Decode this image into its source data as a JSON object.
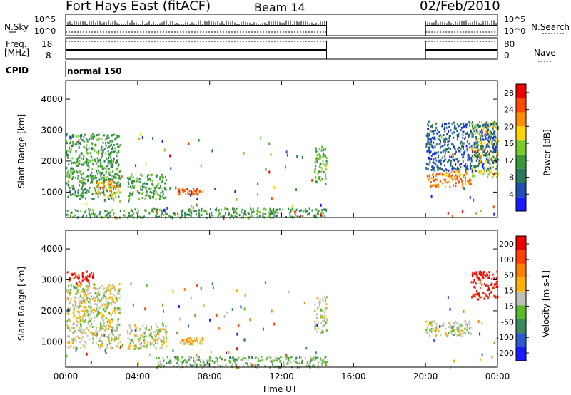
{
  "header": {
    "station": "Fort Hays East (fitACF)",
    "beam": "Beam 14",
    "date": "02/Feb/2010"
  },
  "top_panels": {
    "nsky_label": "N.Sky",
    "nsky_ticks": [
      "10^5",
      "10^0"
    ],
    "nsearch_label": "N.Search",
    "nsearch_ticks": [
      "10^5",
      "10^0"
    ],
    "freq_label_1": "Freq.",
    "freq_label_2": "[MHz]",
    "freq_ticks": [
      "18",
      "8"
    ],
    "nave_label": "Nave",
    "nave_ticks": [
      "80",
      "0"
    ],
    "cpid_label": "CPID",
    "cpid_value": "normal 150"
  },
  "colors": {
    "power": [
      "#1a1aff",
      "#1f4fb4",
      "#2a7a5a",
      "#3a9a3a",
      "#7acc2a",
      "#ffd400",
      "#ff9000",
      "#ff4a00",
      "#ee0000"
    ],
    "velocity": [
      "#1a1aff",
      "#2a5acc",
      "#3a8a5a",
      "#5aba2a",
      "#c0c0b4",
      "#ffb000",
      "#ff8000",
      "#ff4000",
      "#ee0000"
    ]
  },
  "chart_data": [
    {
      "type": "heatmap",
      "title": "Power",
      "xlabel": "Time UT",
      "ylabel": "Slant Range [km]",
      "x_ticks": [
        "00:00",
        "04:00",
        "08:00",
        "12:00",
        "16:00",
        "20:00",
        "00:00"
      ],
      "xlim_hours": [
        0,
        24
      ],
      "y_ticks": [
        1000,
        2000,
        3000,
        4000
      ],
      "ylim": [
        180,
        4600
      ],
      "colorbar": {
        "label": "Power [dB]",
        "ticks": [
          4,
          8,
          12,
          16,
          20,
          24,
          28
        ],
        "range": [
          0,
          30
        ]
      },
      "data_gap_hours": [
        14.5,
        20.0
      ],
      "echo_regions": [
        {
          "t0": 0.0,
          "t1": 3.0,
          "r0": 800,
          "r1": 2900,
          "value": 11
        },
        {
          "t0": 1.6,
          "t1": 2.9,
          "r0": 900,
          "r1": 1400,
          "value": 21
        },
        {
          "t0": 3.4,
          "t1": 5.6,
          "r0": 800,
          "r1": 1600,
          "value": 12
        },
        {
          "t0": 6.2,
          "t1": 7.6,
          "r0": 950,
          "r1": 1150,
          "value": 24
        },
        {
          "t0": 0.0,
          "t1": 14.5,
          "r0": 200,
          "r1": 500,
          "value": 11
        },
        {
          "t0": 13.8,
          "t1": 14.5,
          "r0": 1300,
          "r1": 2500,
          "value": 13
        },
        {
          "t0": 20.0,
          "t1": 22.5,
          "r0": 1200,
          "r1": 1700,
          "value": 23
        },
        {
          "t0": 22.5,
          "t1": 24.0,
          "r0": 1500,
          "r1": 3300,
          "value": 17
        },
        {
          "t0": 20.0,
          "t1": 24.0,
          "r0": 1700,
          "r1": 3300,
          "value": 6
        }
      ]
    },
    {
      "type": "heatmap",
      "title": "Velocity",
      "xlabel": "Time UT",
      "ylabel": "Slant Range [km]",
      "x_ticks": [
        "00:00",
        "04:00",
        "08:00",
        "12:00",
        "16:00",
        "20:00",
        "00:00"
      ],
      "xlim_hours": [
        0,
        24
      ],
      "y_ticks": [
        1000,
        2000,
        3000,
        4000
      ],
      "ylim": [
        180,
        4600
      ],
      "colorbar": {
        "label": "Velocity [m s-1]",
        "ticks": [
          200,
          100,
          50,
          15,
          -15,
          -50,
          -100,
          -200
        ],
        "range": [
          -250,
          250
        ]
      },
      "data_gap_hours": [
        14.5,
        20.0
      ],
      "echo_regions": [
        {
          "t0": 0.0,
          "t1": 3.0,
          "r0": 800,
          "r1": 2900,
          "value": 0
        },
        {
          "t0": 3.4,
          "t1": 5.6,
          "r0": 800,
          "r1": 1600,
          "value": 0
        },
        {
          "t0": 6.2,
          "t1": 7.6,
          "r0": 950,
          "r1": 1150,
          "value": 60
        },
        {
          "t0": 5.0,
          "t1": 14.5,
          "r0": 200,
          "r1": 550,
          "value": -55
        },
        {
          "t0": 13.8,
          "t1": 14.5,
          "r0": 1300,
          "r1": 2500,
          "value": 0
        },
        {
          "t0": 20.0,
          "t1": 22.5,
          "r0": 1200,
          "r1": 1700,
          "value": 0
        },
        {
          "t0": 22.5,
          "t1": 24.0,
          "r0": 2400,
          "r1": 3300,
          "value": 220
        },
        {
          "t0": 0.0,
          "t1": 1.5,
          "r0": 2900,
          "r1": 3300,
          "value": 220
        }
      ]
    }
  ]
}
